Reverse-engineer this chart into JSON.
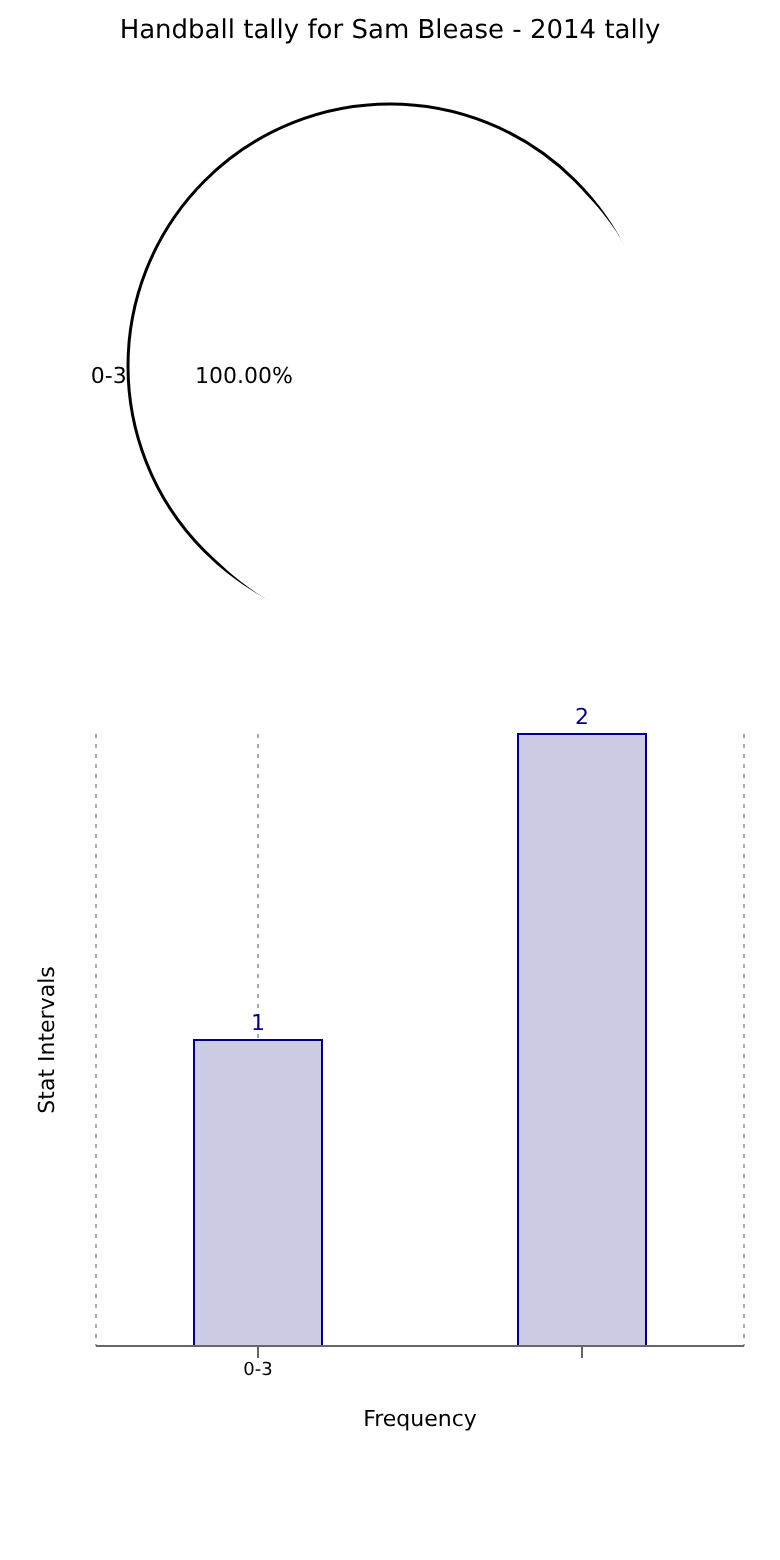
{
  "chart_data": [
    {
      "type": "pie",
      "title": "Handball tally for Sam Blease - 2014 tally",
      "categories": [
        "0-3"
      ],
      "values": [
        100
      ],
      "value_labels": [
        "100.00%"
      ],
      "colors": [
        "#ffffff"
      ]
    },
    {
      "type": "bar",
      "xlabel": "Frequency",
      "ylabel": "Stat Intervals",
      "categories": [
        "0-3",
        null
      ],
      "values": [
        1,
        2
      ],
      "color": "#ccccE4",
      "data_labels": true,
      "grid": "x"
    }
  ]
}
